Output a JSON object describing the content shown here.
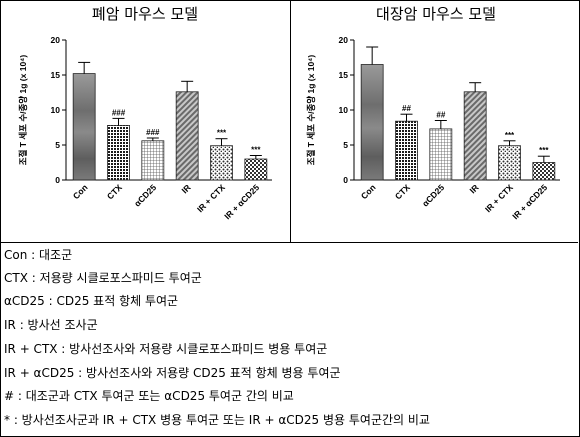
{
  "titles": {
    "left": "폐암 마우스 모델",
    "right": "대장암 마우스 모델"
  },
  "chart_data": [
    {
      "type": "bar",
      "title": "폐암 마우스 모델",
      "ylabel": "조절 T 세포 수/종양 1g (x 10⁴)",
      "ylim": [
        0,
        20
      ],
      "yticks": [
        0,
        5,
        10,
        15,
        20
      ],
      "categories": [
        "Con",
        "CTX",
        "αCD25",
        "IR",
        "IR + CTX",
        "IR + αCD25"
      ],
      "values": [
        15.2,
        7.8,
        5.6,
        12.6,
        4.9,
        3.0
      ],
      "errors": [
        1.6,
        1.0,
        0.4,
        1.5,
        1.0,
        0.5
      ],
      "annotations": [
        "",
        "###",
        "###",
        "",
        "***",
        "***"
      ],
      "grid": false
    },
    {
      "type": "bar",
      "title": "대장암 마우스 모델",
      "ylabel": "조절 T 세포 수/종양 1g (x 10⁴)",
      "ylim": [
        0,
        20
      ],
      "yticks": [
        0,
        5,
        10,
        15,
        20
      ],
      "categories": [
        "Con",
        "CTX",
        "αCD25",
        "IR",
        "IR + CTX",
        "IR + αCD25"
      ],
      "values": [
        16.5,
        8.4,
        7.3,
        12.6,
        4.9,
        2.5
      ],
      "errors": [
        2.5,
        1.0,
        1.2,
        1.3,
        0.7,
        0.9
      ],
      "annotations": [
        "",
        "##",
        "##",
        "",
        "***",
        "***"
      ],
      "grid": false
    }
  ],
  "legend": [
    "Con : 대조군",
    "CTX : 저용량 시클로포스파미드 투여군",
    "αCD25 : CD25 표적 항체 투여군",
    "IR : 방사선 조사군",
    "IR + CTX : 방사선조사와 저용량 시클로포스파미드 병용 투여군",
    "IR + αCD25 : 방사선조사와 저용량 CD25 표적 항체 병용 투여군",
    "# : 대조군과 CTX 투여군 또는 αCD25 투여군 간의 비교",
    "* : 방사선조사군과 IR + CTX 병용 투여군 또는 IR + αCD25 병용 투여군간의 비교"
  ]
}
